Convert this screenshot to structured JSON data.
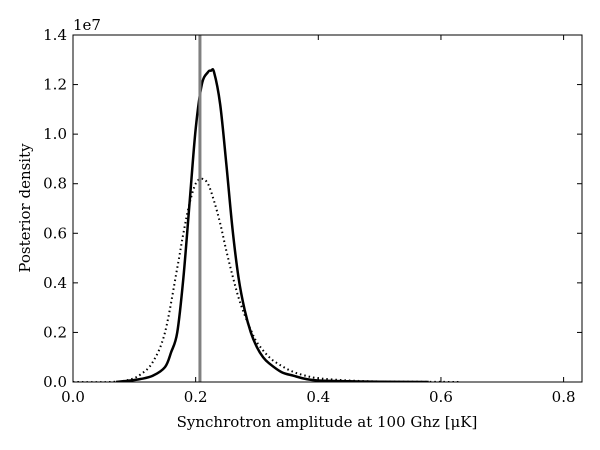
{
  "chart_data": {
    "type": "line",
    "xlabel": "Synchrotron amplitude at 100 Ghz [μK]",
    "ylabel": "Posterior density",
    "y_offset_label": "1e7",
    "xlim": [
      0.0,
      0.83
    ],
    "ylim": [
      0.0,
      1.4
    ],
    "xticks": [
      0.0,
      0.2,
      0.4,
      0.6,
      0.8
    ],
    "xtick_labels": [
      "0.0",
      "0.2",
      "0.4",
      "0.6",
      "0.8"
    ],
    "yticks": [
      0.0,
      0.2,
      0.4,
      0.6,
      0.8,
      1.0,
      1.2,
      1.4
    ],
    "ytick_labels": [
      "0.0",
      "0.2",
      "0.4",
      "0.6",
      "0.8",
      "1.0",
      "1.2",
      "1.4"
    ],
    "grid": false,
    "legend": false,
    "vline": {
      "x": 0.207,
      "color": "#808080"
    },
    "series": [
      {
        "style": "solid",
        "color": "#000000",
        "x": [
          0.07,
          0.09,
          0.11,
          0.13,
          0.15,
          0.16,
          0.17,
          0.18,
          0.19,
          0.2,
          0.21,
          0.22,
          0.225,
          0.23,
          0.24,
          0.25,
          0.26,
          0.27,
          0.28,
          0.29,
          0.3,
          0.31,
          0.32,
          0.34,
          0.36,
          0.38,
          0.4,
          0.45,
          0.5,
          0.58
        ],
        "y": [
          0.0,
          0.005,
          0.012,
          0.025,
          0.06,
          0.12,
          0.2,
          0.42,
          0.72,
          1.02,
          1.2,
          1.25,
          1.256,
          1.25,
          1.12,
          0.88,
          0.62,
          0.42,
          0.29,
          0.2,
          0.14,
          0.1,
          0.075,
          0.04,
          0.025,
          0.012,
          0.006,
          0.003,
          0.001,
          0.0
        ]
      },
      {
        "style": "dotted",
        "color": "#000000",
        "x": [
          0.0,
          0.06,
          0.09,
          0.11,
          0.13,
          0.15,
          0.17,
          0.18,
          0.19,
          0.2,
          0.21,
          0.22,
          0.23,
          0.24,
          0.25,
          0.26,
          0.27,
          0.28,
          0.29,
          0.3,
          0.32,
          0.34,
          0.36,
          0.38,
          0.4,
          0.45,
          0.5,
          0.55,
          0.63
        ],
        "y": [
          0.0,
          0.0,
          0.008,
          0.03,
          0.08,
          0.2,
          0.46,
          0.6,
          0.72,
          0.8,
          0.82,
          0.8,
          0.73,
          0.64,
          0.53,
          0.43,
          0.34,
          0.27,
          0.21,
          0.16,
          0.1,
          0.065,
          0.04,
          0.025,
          0.015,
          0.006,
          0.002,
          0.001,
          0.0
        ]
      }
    ]
  }
}
